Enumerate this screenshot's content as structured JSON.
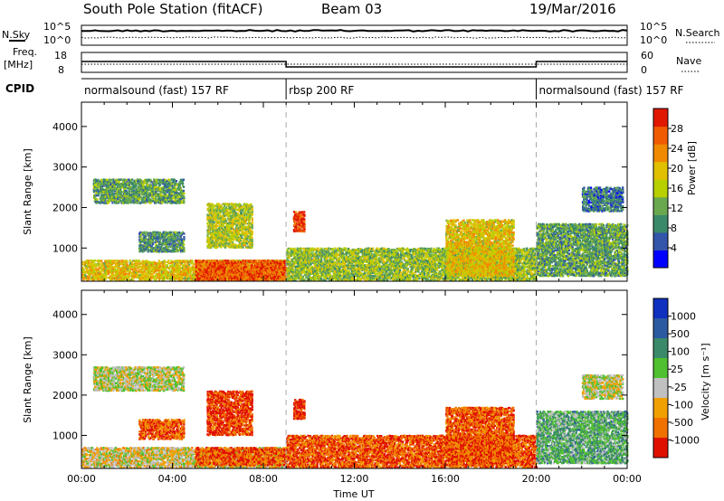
{
  "header": {
    "station": "South Pole Station (fitACF)",
    "beam": "Beam 03",
    "date": "19/Mar/2016"
  },
  "strips": {
    "nsky_label": "N.Sky",
    "nsky_ticks": [
      "10^5",
      "10^0"
    ],
    "nsearch_label": "N.Search",
    "nsearch_ticks": [
      "10^5",
      "10^0"
    ],
    "freq_label": "Freq.",
    "freq_unit": "[MHz]",
    "freq_ticks": [
      "18",
      "8"
    ],
    "nave_label": "Nave",
    "nave_ticks": [
      "60",
      "0"
    ],
    "cpid_label": "CPID",
    "cpid_segments": [
      {
        "label": "normalsound (fast) 157 RF",
        "start_h": 0,
        "end_h": 9
      },
      {
        "label": "rbsp 200 RF",
        "start_h": 9,
        "end_h": 20
      },
      {
        "label": "normalsound (fast) 157 RF",
        "start_h": 20,
        "end_h": 24
      }
    ]
  },
  "chart_data": [
    {
      "type": "heatmap",
      "quantity": "power",
      "ylabel": "Slant Range [km]",
      "ylim": [
        180,
        4600
      ],
      "yticks": [
        "1000",
        "2000",
        "3000",
        "4000"
      ],
      "colorbar_label": "Power [dB]",
      "colorbar_ticks": [
        "4",
        "8",
        "12",
        "16",
        "20",
        "24",
        "28"
      ],
      "colorscale": [
        "#0000ff",
        "#3355aa",
        "#3a8a6a",
        "#6aa84f",
        "#b8cf00",
        "#e0c000",
        "#f08a00",
        "#f05a00",
        "#e01800"
      ],
      "echo_regions": [
        {
          "t0": 0.0,
          "t1": 9.0,
          "r0": 200,
          "r1": 700,
          "level": 0.6
        },
        {
          "t0": 5.0,
          "t1": 9.0,
          "r0": 200,
          "r1": 700,
          "level": 0.85
        },
        {
          "t0": 0.5,
          "t1": 4.5,
          "r0": 2100,
          "r1": 2700,
          "level": 0.35
        },
        {
          "t0": 2.5,
          "t1": 4.5,
          "r0": 900,
          "r1": 1400,
          "level": 0.3
        },
        {
          "t0": 5.5,
          "t1": 7.5,
          "r0": 1000,
          "r1": 2100,
          "level": 0.5
        },
        {
          "t0": 9.3,
          "t1": 9.8,
          "r0": 1400,
          "r1": 1900,
          "level": 0.9
        },
        {
          "t0": 9.0,
          "t1": 20.0,
          "r0": 200,
          "r1": 1000,
          "level": 0.45
        },
        {
          "t0": 16.0,
          "t1": 19.0,
          "r0": 300,
          "r1": 1700,
          "level": 0.6
        },
        {
          "t0": 20.0,
          "t1": 24.0,
          "r0": 300,
          "r1": 1600,
          "level": 0.35
        },
        {
          "t0": 22.0,
          "t1": 23.8,
          "r0": 1900,
          "r1": 2500,
          "level": 0.25
        }
      ]
    },
    {
      "type": "heatmap",
      "quantity": "velocity",
      "ylabel": "Slant Range [km]",
      "xlabel": "Time UT",
      "ylim": [
        180,
        4600
      ],
      "xlim": [
        0,
        24
      ],
      "yticks": [
        "1000",
        "2000",
        "3000",
        "4000"
      ],
      "xticks": [
        "00:00",
        "04:00",
        "08:00",
        "12:00",
        "16:00",
        "20:00",
        "00:00"
      ],
      "colorbar_label": "Velocity [m s⁻¹]",
      "colorbar_ticks": [
        "1000",
        "500",
        "100",
        "25",
        "-25",
        "-100",
        "-500",
        "-1000"
      ],
      "colorscale": [
        "#e01000",
        "#f07000",
        "#f0a000",
        "#c0c0c0",
        "#50c030",
        "#3a8a6a",
        "#2c5aa0",
        "#1030c0"
      ],
      "echo_regions": [
        {
          "t0": 0.0,
          "t1": 9.0,
          "r0": 200,
          "r1": 700,
          "level": 0.4
        },
        {
          "t0": 5.0,
          "t1": 9.0,
          "r0": 250,
          "r1": 700,
          "level": 0.15
        },
        {
          "t0": 0.5,
          "t1": 4.5,
          "r0": 2100,
          "r1": 2700,
          "level": 0.45
        },
        {
          "t0": 2.5,
          "t1": 4.5,
          "r0": 900,
          "r1": 1400,
          "level": 0.15
        },
        {
          "t0": 5.5,
          "t1": 7.5,
          "r0": 1000,
          "r1": 2100,
          "level": 0.1
        },
        {
          "t0": 9.3,
          "t1": 9.8,
          "r0": 1400,
          "r1": 1900,
          "level": 0.05
        },
        {
          "t0": 9.0,
          "t1": 20.0,
          "r0": 200,
          "r1": 1000,
          "level": 0.15
        },
        {
          "t0": 16.0,
          "t1": 19.0,
          "r0": 300,
          "r1": 1700,
          "level": 0.15
        },
        {
          "t0": 20.0,
          "t1": 24.0,
          "r0": 300,
          "r1": 1600,
          "level": 0.6
        },
        {
          "t0": 22.0,
          "t1": 23.8,
          "r0": 1900,
          "r1": 2500,
          "level": 0.45
        }
      ]
    }
  ]
}
